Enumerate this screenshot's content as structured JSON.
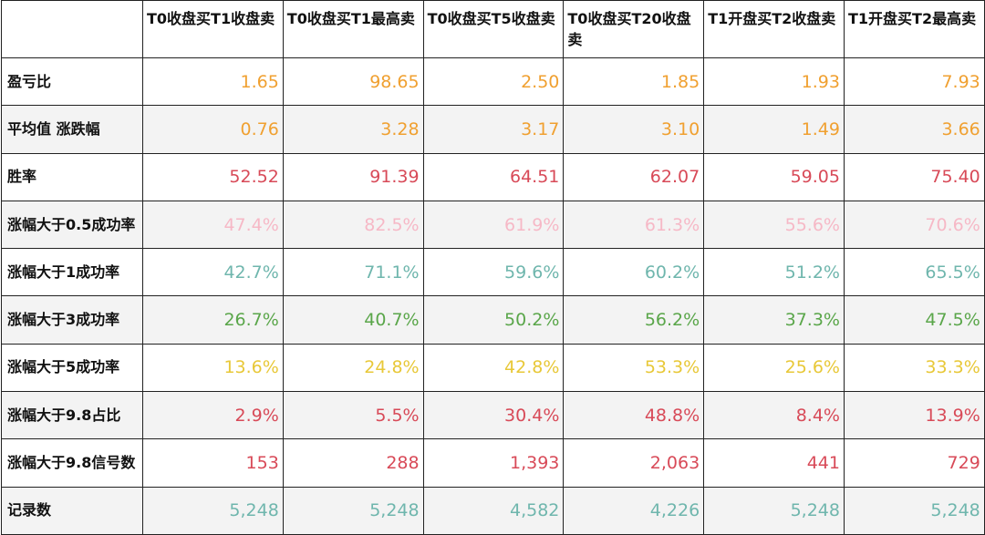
{
  "table": {
    "corner": "",
    "columns": [
      "T0收盘买T1收盘卖",
      "T0收盘买T1最高卖",
      "T0收盘买T5收盘卖",
      "T0收盘买T20收盘卖",
      "T1开盘买T2收盘卖",
      "T1开盘买T2最高卖"
    ],
    "rows": [
      {
        "label": "盈亏比",
        "color": "#f0a030",
        "values": [
          "1.65",
          "98.65",
          "2.50",
          "1.85",
          "1.93",
          "7.93"
        ]
      },
      {
        "label": "平均值 涨跌幅",
        "color": "#f0a030",
        "values": [
          "0.76",
          "3.28",
          "3.17",
          "3.10",
          "1.49",
          "3.66"
        ]
      },
      {
        "label": "胜率",
        "color": "#d84a58",
        "values": [
          "52.52",
          "91.39",
          "64.51",
          "62.07",
          "59.05",
          "75.40"
        ]
      },
      {
        "label": "涨幅大于0.5成功率",
        "color": "#f6b8c6",
        "values": [
          "47.4%",
          "82.5%",
          "61.9%",
          "61.3%",
          "55.6%",
          "70.6%"
        ]
      },
      {
        "label": "涨幅大于1成功率",
        "color": "#6fb6ad",
        "values": [
          "42.7%",
          "71.1%",
          "59.6%",
          "60.2%",
          "51.2%",
          "65.5%"
        ]
      },
      {
        "label": "涨幅大于3成功率",
        "color": "#5aa64a",
        "values": [
          "26.7%",
          "40.7%",
          "50.2%",
          "56.2%",
          "37.3%",
          "47.5%"
        ]
      },
      {
        "label": "涨幅大于5成功率",
        "color": "#e8c838",
        "values": [
          "13.6%",
          "24.8%",
          "42.8%",
          "53.3%",
          "25.6%",
          "33.3%"
        ]
      },
      {
        "label": "涨幅大于9.8占比",
        "color": "#d84a58",
        "values": [
          "2.9%",
          "5.5%",
          "30.4%",
          "48.8%",
          "8.4%",
          "13.9%"
        ]
      },
      {
        "label": "涨幅大于9.8信号数",
        "color": "#d84a58",
        "values": [
          "153",
          "288",
          "1,393",
          "2,063",
          "441",
          "729"
        ]
      },
      {
        "label": "记录数",
        "color": "#6fb6ad",
        "values": [
          "5,248",
          "5,248",
          "4,582",
          "4,226",
          "5,248",
          "5,248"
        ]
      }
    ]
  }
}
